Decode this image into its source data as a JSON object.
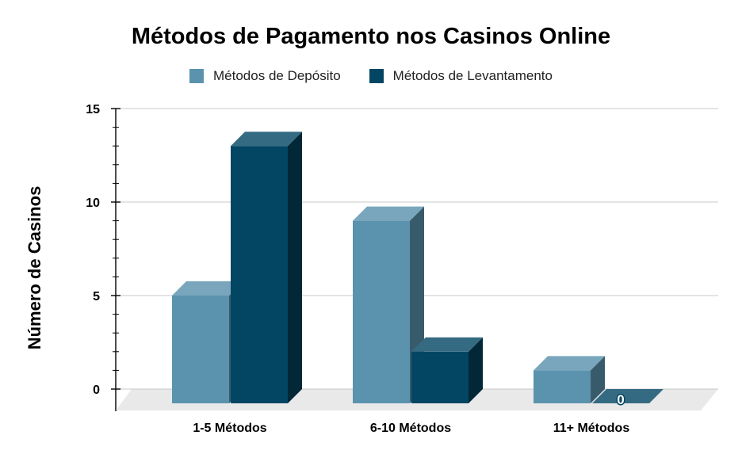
{
  "chart_data": {
    "type": "bar",
    "title": "Métodos de Pagamento nos Casinos Online",
    "ylabel": "Número de Casinos",
    "xlabel": "",
    "categories": [
      "1-5 Métodos",
      "6-10 Métodos",
      "11+ Métodos"
    ],
    "series": [
      {
        "name": "Métodos de Depósito",
        "values": [
          5,
          9,
          1
        ],
        "color": "#5b93ae"
      },
      {
        "name": "Métodos de Levantamento",
        "values": [
          13,
          2,
          0
        ],
        "color": "#034663"
      }
    ],
    "ylim": [
      0,
      15
    ],
    "yticks": [
      0,
      5,
      10,
      15
    ],
    "data_labels": [
      {
        "series": 1,
        "category": 2,
        "text": "0"
      }
    ],
    "grid": true,
    "legend_position": "top",
    "style": "3d"
  }
}
